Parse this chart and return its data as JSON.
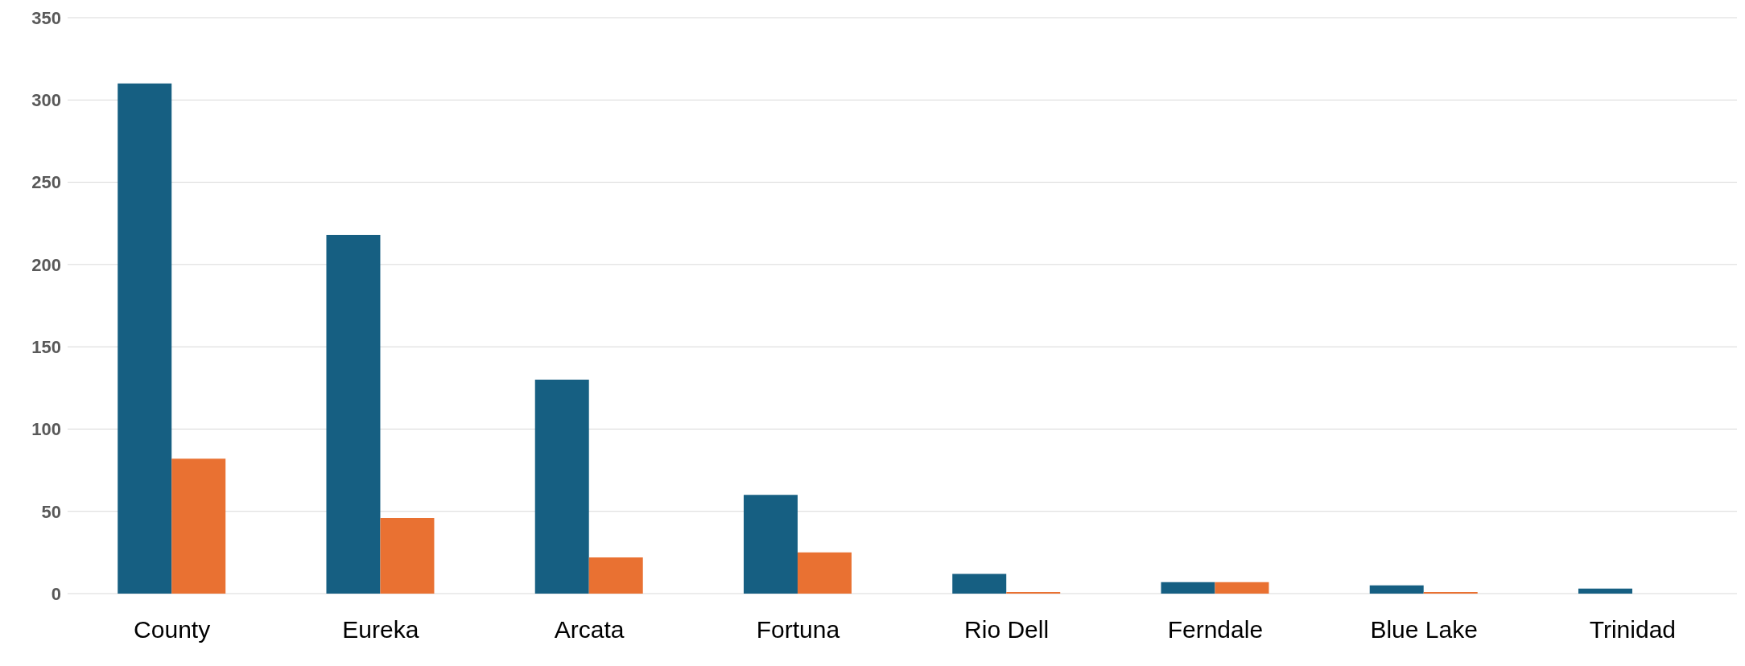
{
  "chart_data": {
    "type": "bar",
    "categories": [
      "County",
      "Eureka",
      "Arcata",
      "Fortuna",
      "Rio Dell",
      "Ferndale",
      "Blue Lake",
      "Trinidad"
    ],
    "series": [
      {
        "color": "#165f82",
        "values": [
          310,
          218,
          130,
          60,
          12,
          7,
          5,
          3
        ]
      },
      {
        "color": "#e97132",
        "values": [
          82,
          46,
          22,
          25,
          1,
          7,
          1,
          0
        ]
      }
    ],
    "ylim": [
      0,
      350
    ],
    "yticks": [
      0,
      50,
      100,
      150,
      200,
      250,
      300,
      350
    ],
    "grid": "y",
    "legend": false
  }
}
